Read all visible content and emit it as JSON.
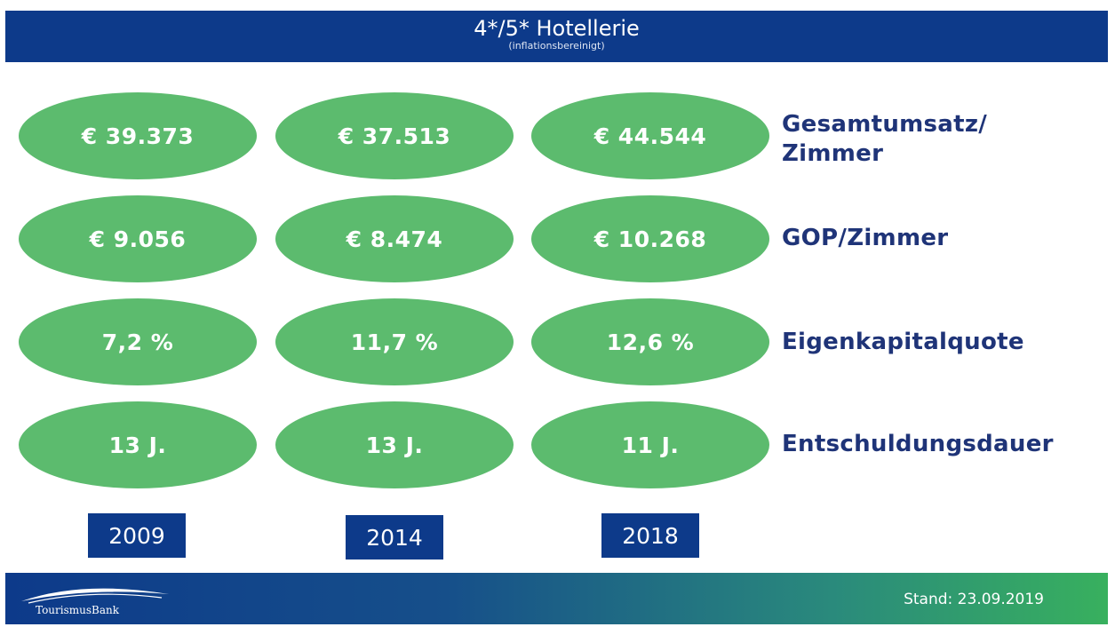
{
  "header": {
    "title": "4*/5* Hotellerie",
    "subtitle": "(inflationsbereinigt)"
  },
  "metrics": [
    {
      "label_line1": "Gesamtumsatz/",
      "label_line2": "Zimmer",
      "values": [
        "€ 39.373",
        "€ 37.513",
        "€ 44.544"
      ]
    },
    {
      "label_line1": "GOP/Zimmer",
      "values": [
        "€ 9.056",
        "€ 8.474",
        "€ 10.268"
      ]
    },
    {
      "label_line1": "Eigenkapitalquote",
      "values": [
        "7,2 %",
        "11,7 %",
        "12,6 %"
      ]
    },
    {
      "label_line1": "Entschuldungsdauer",
      "values": [
        "13 J.",
        "13 J.",
        "11 J."
      ]
    }
  ],
  "years": [
    "2009",
    "2014",
    "2018"
  ],
  "footer": {
    "logo_text": "TourismusBank",
    "stand": "Stand: 23.09.2019"
  },
  "colors": {
    "header_blue": "#0d3a8a",
    "oval_green": "#5cbb6e",
    "label_navy": "#1f3478"
  }
}
